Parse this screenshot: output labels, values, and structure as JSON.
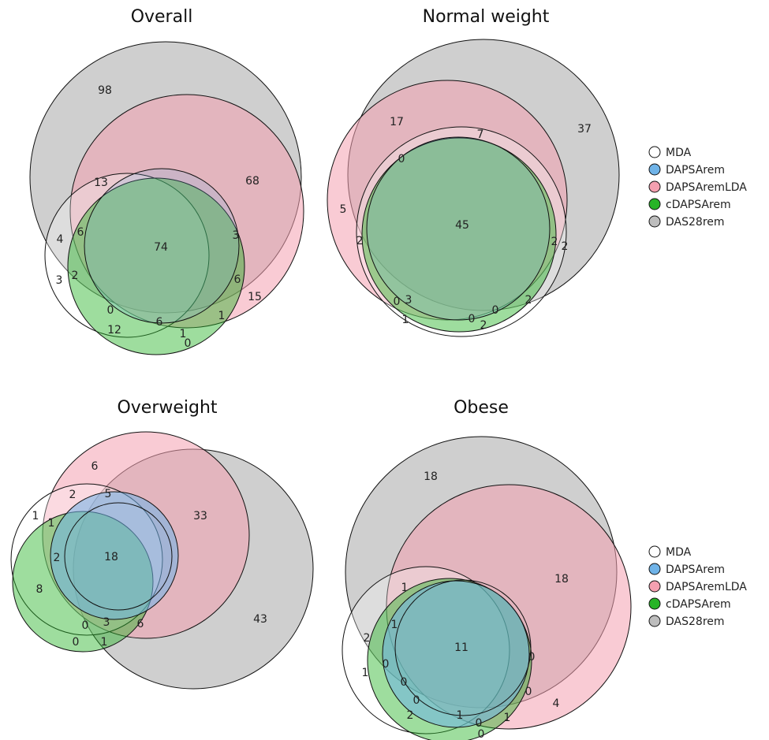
{
  "colors": {
    "MDA": "#ffffff",
    "DAPSArem": "#6fb3e8",
    "DAPSAremLDA": "#f4a0b0",
    "cDAPSArem": "#27b427",
    "DAS28rem": "#bdbdbd"
  },
  "legend_top": {
    "items": [
      {
        "label": "MDA",
        "color": "#ffffff"
      },
      {
        "label": "DAPSArem",
        "color": "#6fb3e8"
      },
      {
        "label": "DAPSAremLDA",
        "color": "#f4a0b0"
      },
      {
        "label": "cDAPSArem",
        "color": "#27b427"
      },
      {
        "label": "DAS28rem",
        "color": "#bdbdbd"
      }
    ]
  },
  "legend_bottom": {
    "items": [
      {
        "label": "MDA",
        "color": "#ffffff"
      },
      {
        "label": "DAPSArem",
        "color": "#6fb3e8"
      },
      {
        "label": "DAPSAremLDA",
        "color": "#f4a0b0"
      },
      {
        "label": "cDAPSArem",
        "color": "#27b427"
      },
      {
        "label": "DAS28rem",
        "color": "#bdbdbd"
      }
    ]
  },
  "panels": [
    {
      "title": "Overall",
      "labels": [
        "98",
        "68",
        "13",
        "74",
        "4",
        "6",
        "3",
        "3",
        "2",
        "6",
        "15",
        "0",
        "12",
        "6",
        "1",
        "1",
        "0"
      ]
    },
    {
      "title": "Normal weight",
      "labels": [
        "17",
        "7",
        "37",
        "0",
        "5",
        "45",
        "2",
        "2",
        "2",
        "0",
        "3",
        "0",
        "2",
        "1",
        "0",
        "2"
      ]
    },
    {
      "title": "Overweight",
      "labels": [
        "6",
        "2",
        "5",
        "1",
        "1",
        "33",
        "2",
        "18",
        "8",
        "43",
        "0",
        "3",
        "6",
        "0",
        "1"
      ]
    },
    {
      "title": "Obese",
      "labels": [
        "18",
        "18",
        "1",
        "2",
        "1",
        "11",
        "1",
        "0",
        "0",
        "0",
        "0",
        "0",
        "4",
        "2",
        "1",
        "0",
        "1",
        "0"
      ]
    }
  ]
}
